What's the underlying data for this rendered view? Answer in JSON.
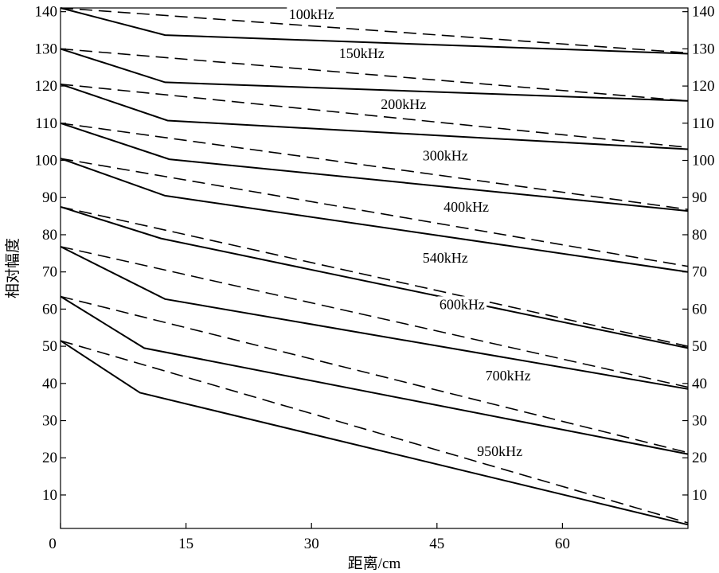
{
  "chart_data": {
    "type": "line",
    "xlabel": "距离/cm",
    "ylabel": "相对幅度",
    "xlim": [
      0,
      75
    ],
    "ylim": [
      1,
      141
    ],
    "x_ticks": [
      "0",
      "15",
      "30",
      "45",
      "60"
    ],
    "x_tick_values": [
      0,
      15,
      30,
      45,
      60
    ],
    "y_ticks": [
      "10",
      "20",
      "30",
      "40",
      "50",
      "60",
      "70",
      "80",
      "90",
      "100",
      "110",
      "120",
      "130",
      "140"
    ],
    "y_tick_values": [
      10,
      20,
      30,
      40,
      50,
      60,
      70,
      80,
      90,
      100,
      110,
      120,
      130,
      140
    ],
    "right_axis_ticks": true,
    "grid": false,
    "series": [
      {
        "name": "100kHz",
        "solid": {
          "x": [
            0,
            12.5,
            75
          ],
          "y": [
            141,
            133.7,
            128.7
          ]
        },
        "dashed": {
          "x": [
            0,
            75
          ],
          "y": [
            141,
            128.9
          ]
        },
        "label_at": [
          30,
          138
        ]
      },
      {
        "name": "150kHz",
        "solid": {
          "x": [
            0,
            12.5,
            75
          ],
          "y": [
            130,
            121,
            116
          ]
        },
        "dashed": {
          "x": [
            0,
            75
          ],
          "y": [
            130,
            116
          ]
        },
        "label_at": [
          36,
          127.5
        ]
      },
      {
        "name": "200kHz",
        "solid": {
          "x": [
            0,
            12.8,
            75
          ],
          "y": [
            120.5,
            110.7,
            103
          ]
        },
        "dashed": {
          "x": [
            0,
            75
          ],
          "y": [
            120.5,
            103.5
          ]
        },
        "label_at": [
          41,
          113.8
        ]
      },
      {
        "name": "300kHz",
        "solid": {
          "x": [
            0,
            13,
            75
          ],
          "y": [
            110,
            100.3,
            86.4
          ]
        },
        "dashed": {
          "x": [
            0,
            75
          ],
          "y": [
            110,
            86.8
          ]
        },
        "label_at": [
          46,
          100
        ]
      },
      {
        "name": "400kHz",
        "solid": {
          "x": [
            0,
            12.5,
            75
          ],
          "y": [
            100.5,
            90.5,
            70
          ]
        },
        "dashed": {
          "x": [
            0,
            75
          ],
          "y": [
            100.5,
            71.5
          ]
        },
        "label_at": [
          48.5,
          86.2
        ]
      },
      {
        "name": "540kHz",
        "solid": {
          "x": [
            0,
            12,
            75
          ],
          "y": [
            87.5,
            79,
            49.5
          ]
        },
        "dashed": {
          "x": [
            0,
            75
          ],
          "y": [
            87.5,
            50
          ]
        },
        "label_at": [
          46,
          72.5
        ]
      },
      {
        "name": "600kHz",
        "solid": {
          "x": [
            0,
            12.5,
            75
          ],
          "y": [
            76.8,
            62.7,
            38.5
          ]
        },
        "dashed": {
          "x": [
            0,
            75
          ],
          "y": [
            76.8,
            39
          ]
        },
        "label_at": [
          48,
          60
        ]
      },
      {
        "name": "700kHz",
        "solid": {
          "x": [
            0,
            10,
            75
          ],
          "y": [
            63.4,
            49.5,
            21
          ]
        },
        "dashed": {
          "x": [
            0,
            75
          ],
          "y": [
            63.4,
            21.4
          ]
        },
        "label_at": [
          53.5,
          40.8
        ]
      },
      {
        "name": "950kHz",
        "solid": {
          "x": [
            0,
            9.5,
            75
          ],
          "y": [
            51.5,
            37.5,
            2
          ]
        },
        "dashed": {
          "x": [
            0,
            75
          ],
          "y": [
            51.5,
            2.5
          ]
        },
        "label_at": [
          52.5,
          20.5
        ]
      }
    ]
  }
}
